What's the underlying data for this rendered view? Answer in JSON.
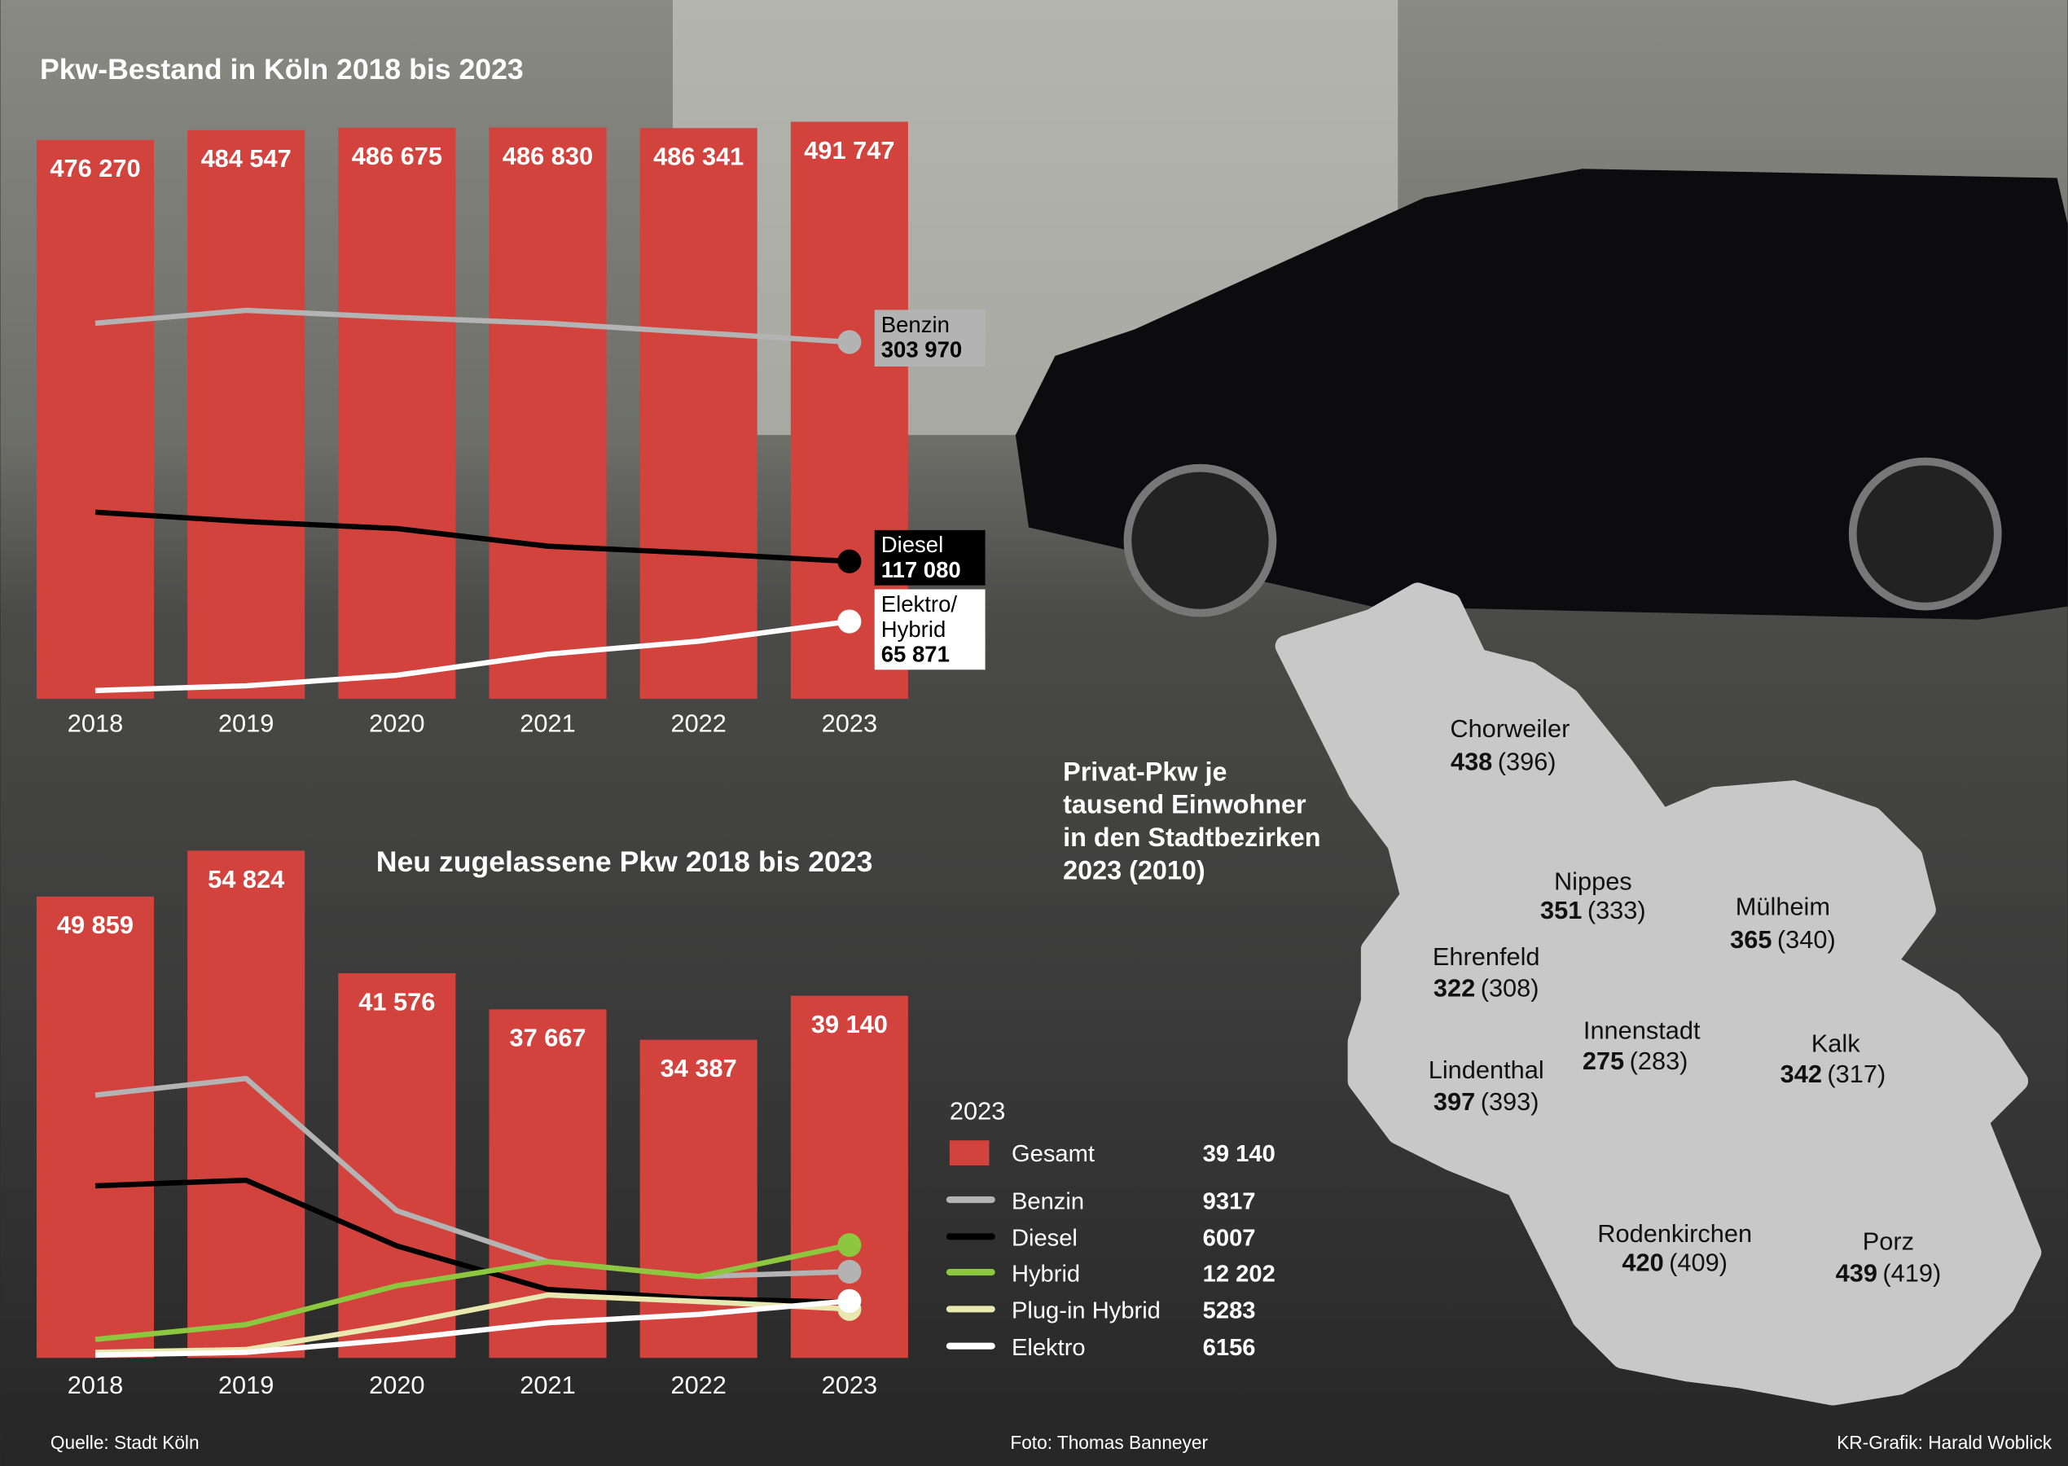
{
  "chart_data": [
    {
      "type": "combo",
      "title": "Pkw-Bestand in Köln 2018 bis 2023",
      "categories": [
        "2018",
        "2019",
        "2020",
        "2021",
        "2022",
        "2023"
      ],
      "bar_values": [
        476270,
        484547,
        486675,
        486830,
        486341,
        491747
      ],
      "bar_value_labels": [
        "476 270",
        "484 547",
        "486 675",
        "486 830",
        "486 341",
        "491 747"
      ],
      "bar_color": "#d2433e",
      "series": [
        {
          "name": "Benzin",
          "color": "#b3b3b3",
          "values": [
            320000,
            331000,
            325000,
            320000,
            312000,
            303970
          ],
          "value_labels": [
            null,
            null,
            null,
            null,
            null,
            "303 970"
          ]
        },
        {
          "name": "Diesel",
          "color": "#000000",
          "values": [
            159000,
            151000,
            145000,
            130000,
            124000,
            117080
          ],
          "value_labels": [
            null,
            null,
            null,
            null,
            null,
            "117 080"
          ]
        },
        {
          "name": "Elektro/ Hybrid",
          "color": "#ffffff",
          "values": [
            7000,
            11000,
            20000,
            38000,
            49000,
            65871
          ],
          "value_labels": [
            null,
            null,
            null,
            null,
            null,
            "65 871"
          ]
        }
      ],
      "ylim": [
        0,
        500000
      ],
      "end_labels": true
    },
    {
      "type": "combo",
      "title": "Neu zugelassene Pkw 2018 bis 2023",
      "categories": [
        "2018",
        "2019",
        "2020",
        "2021",
        "2022",
        "2023"
      ],
      "bar_name": "Gesamt",
      "bar_values": [
        49859,
        54824,
        41576,
        37667,
        34387,
        39140
      ],
      "bar_value_labels": [
        "49 859",
        "54 824",
        "41 576",
        "37 667",
        "34 387",
        "39 140"
      ],
      "bar_color": "#d2433e",
      "series": [
        {
          "name": "Benzin",
          "color": "#b3b3b3",
          "values": [
            28400,
            30200,
            15900,
            10400,
            8800,
            9317
          ]
        },
        {
          "name": "Diesel",
          "color": "#000000",
          "values": [
            18600,
            19200,
            12100,
            7400,
            6400,
            6007
          ]
        },
        {
          "name": "Hybrid",
          "color": "#8dc63f",
          "values": [
            2000,
            3600,
            7800,
            10400,
            8800,
            12202
          ],
          "value_labels": [
            null,
            null,
            null,
            null,
            null,
            "12 202"
          ]
        },
        {
          "name": "Plug-in Hybrid",
          "color": "#e8e8b0",
          "values": [
            600,
            900,
            3600,
            6800,
            6100,
            5283
          ]
        },
        {
          "name": "Elektro",
          "color": "#ffffff",
          "values": [
            300,
            600,
            2000,
            3800,
            4700,
            6156
          ]
        }
      ],
      "ylim": [
        0,
        55000
      ],
      "legend": true,
      "legend_title": "2023"
    }
  ],
  "map": {
    "title_lines": [
      "Privat-Pkw je",
      "tausend Einwohner",
      "in den Stadtbezirken",
      "2023 (2010)"
    ],
    "districts": [
      {
        "name": "Chorweiler",
        "value": 438,
        "value_2010": 396,
        "value_2010_label": "(396)"
      },
      {
        "name": "Nippes",
        "value": 351,
        "value_2010": 333,
        "value_2010_label": "(333)"
      },
      {
        "name": "Mülheim",
        "value": 365,
        "value_2010": 340,
        "value_2010_label": "(340)"
      },
      {
        "name": "Ehrenfeld",
        "value": 322,
        "value_2010": 308,
        "value_2010_label": "(308)"
      },
      {
        "name": "Innenstadt",
        "value": 275,
        "value_2010": 283,
        "value_2010_label": "(283)"
      },
      {
        "name": "Kalk",
        "value": 342,
        "value_2010": 317,
        "value_2010_label": "(317)"
      },
      {
        "name": "Lindenthal",
        "value": 397,
        "value_2010": 393,
        "value_2010_label": "(393)"
      },
      {
        "name": "Rodenkirchen",
        "value": 420,
        "value_2010": 409,
        "value_2010_label": "(409)"
      },
      {
        "name": "Porz",
        "value": 439,
        "value_2010": 419,
        "value_2010_label": "(419)"
      }
    ]
  },
  "footer": {
    "source": "Quelle: Stadt Köln",
    "photo": "Foto: Thomas Banneyer",
    "graphic": "KR-Grafik: Harald Woblick"
  }
}
